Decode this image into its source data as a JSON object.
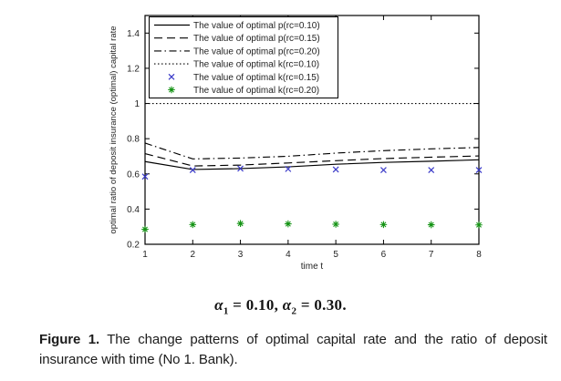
{
  "page": {
    "background": "#ffffff"
  },
  "chart_data": {
    "type": "line",
    "title": "",
    "xlabel": "time t",
    "ylabel": "optimal ratio of deposit insurance (optimal) capital rate",
    "xlim": [
      1,
      8
    ],
    "ylim": [
      0.2,
      1.5
    ],
    "xticks": [
      1,
      2,
      3,
      4,
      5,
      6,
      7,
      8
    ],
    "yticks": [
      0.2,
      0.4,
      0.6,
      0.8,
      1.0,
      1.2,
      1.4
    ],
    "ytick_labels": [
      "0.2",
      "0.4",
      "0.6",
      "0.8",
      "1",
      "1.2",
      "1.4"
    ],
    "grid": false,
    "legend_position": "top-left",
    "x": [
      1,
      2,
      3,
      4,
      5,
      6,
      7,
      8
    ],
    "series": [
      {
        "label": "The value of optimal p(rc=0.10)",
        "type": "line",
        "dash": "solid",
        "color": "#000000",
        "values": [
          0.67,
          0.625,
          0.63,
          0.64,
          0.655,
          0.665,
          0.672,
          0.68
        ]
      },
      {
        "label": "The value of optimal p(rc=0.15)",
        "type": "line",
        "dash": "dashed",
        "color": "#000000",
        "values": [
          0.715,
          0.645,
          0.65,
          0.662,
          0.675,
          0.687,
          0.695,
          0.702
        ]
      },
      {
        "label": "The value of optimal p(rc=0.20)",
        "type": "line",
        "dash": "dashdot",
        "color": "#000000",
        "values": [
          0.775,
          0.685,
          0.69,
          0.7,
          0.718,
          0.732,
          0.742,
          0.75
        ]
      },
      {
        "label": "The value of optimal k(rc=0.10)",
        "type": "line",
        "dash": "dotted",
        "color": "#000000",
        "values": [
          1.0,
          1.0,
          1.0,
          1.0,
          1.0,
          1.0,
          1.0,
          1.0
        ]
      },
      {
        "label": "The value of optimal k(rc=0.15)",
        "type": "scatter",
        "marker": "x",
        "color": "#3a3ac8",
        "values": [
          0.585,
          0.622,
          0.63,
          0.628,
          0.625,
          0.622,
          0.622,
          0.622
        ]
      },
      {
        "label": "The value of optimal k(rc=0.20)",
        "type": "scatter",
        "marker": "asterisk",
        "color": "#149314",
        "values": [
          0.285,
          0.312,
          0.318,
          0.316,
          0.314,
          0.312,
          0.311,
          0.31
        ]
      }
    ]
  },
  "equation": {
    "alpha": "α",
    "sub1": "1",
    "mid1": " = 0.10, ",
    "sub2": "2",
    "mid2": " = 0.30."
  },
  "caption": {
    "label": "Figure 1.",
    "line1_rest": " The change patterns of optimal capital rate and the ratio of deposit",
    "line2": "insurance with time (No 1. Bank)."
  }
}
